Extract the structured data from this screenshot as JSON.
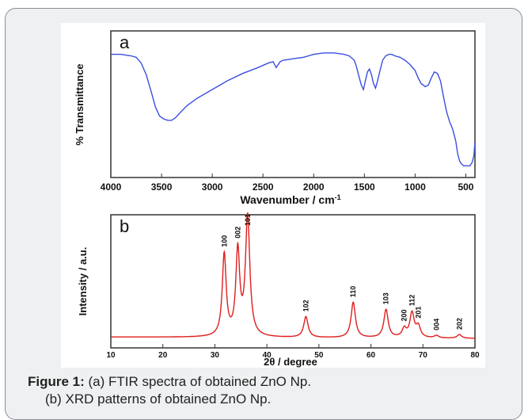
{
  "chart_data": [
    {
      "type": "line",
      "panel_label": "a",
      "xlabel": "Wavenumber / cm",
      "xlabel_sup": "-1",
      "ylabel": "% Transmittance",
      "x_reversed": true,
      "xlim": [
        4000,
        410
      ],
      "ylim": [
        0,
        100
      ],
      "x_ticks": [
        4000,
        3500,
        3000,
        2500,
        2000,
        1500,
        1000,
        500
      ],
      "x_tick_labels": [
        "4000",
        "3500",
        "3000",
        "2500",
        "2000",
        "1500",
        "1000",
        "500"
      ],
      "series": [
        {
          "color": "#3b4fe0",
          "x": [
            4000,
            3900,
            3800,
            3750,
            3700,
            3650,
            3600,
            3560,
            3520,
            3480,
            3440,
            3400,
            3360,
            3320,
            3250,
            3150,
            3000,
            2850,
            2700,
            2550,
            2450,
            2400,
            2370,
            2350,
            2330,
            2300,
            2200,
            2100,
            2000,
            1900,
            1800,
            1700,
            1650,
            1600,
            1580,
            1550,
            1530,
            1510,
            1490,
            1470,
            1450,
            1430,
            1410,
            1390,
            1370,
            1350,
            1320,
            1290,
            1260,
            1230,
            1200,
            1150,
            1100,
            1050,
            1000,
            970,
            940,
            900,
            870,
            840,
            810,
            780,
            750,
            720,
            690,
            660,
            630,
            600,
            580,
            560,
            540,
            520,
            500,
            480,
            460,
            440,
            420,
            410
          ],
          "y": [
            84,
            84,
            83,
            82,
            78,
            70,
            58,
            48,
            42,
            40,
            39,
            39,
            41,
            44,
            49,
            54,
            60,
            66,
            71,
            75,
            78,
            79,
            75,
            77,
            79,
            80,
            81,
            82,
            84,
            85,
            85,
            84,
            83,
            80,
            76,
            68,
            63,
            60,
            66,
            72,
            74,
            70,
            64,
            61,
            66,
            72,
            80,
            83,
            84,
            84,
            83,
            82,
            80,
            77,
            73,
            68,
            64,
            62,
            63,
            68,
            72,
            71,
            66,
            55,
            45,
            38,
            33,
            25,
            16,
            11,
            9,
            8,
            8,
            8,
            8,
            10,
            15,
            24
          ]
        }
      ]
    },
    {
      "type": "line",
      "panel_label": "b",
      "xlabel": "2θ / degree",
      "ylabel": "Intensity / a.u.",
      "xlim": [
        10,
        80
      ],
      "ylim": [
        0,
        100
      ],
      "x_ticks": [
        10,
        20,
        30,
        40,
        50,
        60,
        70,
        80
      ],
      "x_tick_labels": [
        "10",
        "20",
        "30",
        "40",
        "50",
        "60",
        "70",
        "80"
      ],
      "baseline": 5,
      "peaks": [
        {
          "x": 31.8,
          "y": 67,
          "w": 0.45,
          "label": "100"
        },
        {
          "x": 34.4,
          "y": 69,
          "w": 0.45,
          "label": "002"
        },
        {
          "x": 36.3,
          "y": 98,
          "w": 0.5,
          "label": "101"
        },
        {
          "x": 47.5,
          "y": 17,
          "w": 0.5,
          "label": "102"
        },
        {
          "x": 56.6,
          "y": 29,
          "w": 0.5,
          "label": "110"
        },
        {
          "x": 62.9,
          "y": 23,
          "w": 0.5,
          "label": "103"
        },
        {
          "x": 66.4,
          "y": 7,
          "w": 0.5,
          "label": "200"
        },
        {
          "x": 67.9,
          "y": 20,
          "w": 0.5,
          "label": "112"
        },
        {
          "x": 69.1,
          "y": 9,
          "w": 0.5,
          "label": "201"
        },
        {
          "x": 72.6,
          "y": 2,
          "w": 0.5,
          "label": "004"
        },
        {
          "x": 77.0,
          "y": 3,
          "w": 0.5,
          "label": "202"
        }
      ],
      "series": [
        {
          "color": "#e01e1e"
        }
      ]
    }
  ],
  "caption": {
    "label": "Figure 1:",
    "line1": " (a) FTIR spectra of obtained ZnO Np.",
    "line2": "(b) XRD patterns of obtained ZnO Np."
  }
}
